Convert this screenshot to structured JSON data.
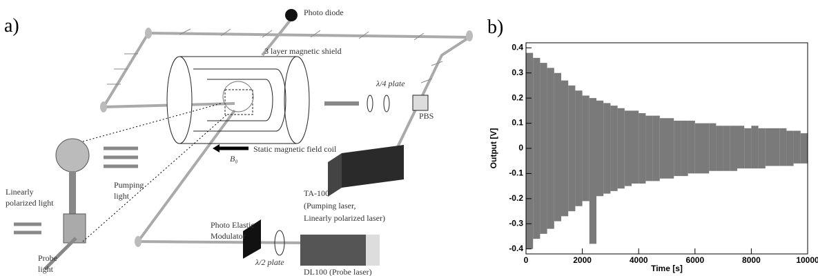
{
  "diagram": {
    "panel_label": "a)",
    "labels": {
      "photo_diode": "Photo diode",
      "shield": "3 layer magnetic shield",
      "quarter_plate": "λ/4  plate",
      "pbs": "PBS",
      "coil": "Static magnetic field coil",
      "b0": "B₀",
      "pumping": [
        "Pumping",
        "light"
      ],
      "linear": [
        "Linearly",
        "polarized light"
      ],
      "probe": [
        "Probe",
        "light"
      ],
      "pem": [
        "Photo Elastic",
        "Modulator"
      ],
      "half_plate": "λ/2 plate",
      "ta": [
        "TA-100",
        "(Pumping laser,",
        "Linearly polarized laser)"
      ],
      "dl": "DL100 (Probe laser)"
    }
  },
  "chart_data": {
    "type": "envelope",
    "panel_label": "b)",
    "x_label": "Time [s]",
    "y_label": "Output [V]",
    "color": "#7a7a7a",
    "x": [
      0,
      250,
      500,
      750,
      1000,
      1250,
      1500,
      1750,
      2000,
      2250,
      2500,
      2750,
      3000,
      3250,
      3500,
      3750,
      4000,
      4250,
      4500,
      4750,
      5000,
      5250,
      5500,
      5750,
      6000,
      6250,
      6500,
      6750,
      7000,
      7250,
      7500,
      7750,
      8000,
      8250,
      8500,
      8750,
      9000,
      9250,
      9500,
      9750
    ],
    "series": [
      {
        "values": [
          0.38,
          0.36,
          0.34,
          0.32,
          0.3,
          0.27,
          0.25,
          0.23,
          0.21,
          0.2,
          0.19,
          0.18,
          0.17,
          0.16,
          0.15,
          0.15,
          0.14,
          0.13,
          0.13,
          0.12,
          0.12,
          0.11,
          0.11,
          0.11,
          0.1,
          0.1,
          0.1,
          0.09,
          0.09,
          0.09,
          0.09,
          0.08,
          0.09,
          0.08,
          0.08,
          0.08,
          0.08,
          0.07,
          0.07,
          0.06
        ]
      },
      {
        "values": [
          -0.4,
          -0.36,
          -0.34,
          -0.32,
          -0.29,
          -0.27,
          -0.25,
          -0.23,
          -0.21,
          -0.38,
          -0.19,
          -0.18,
          -0.17,
          -0.16,
          -0.15,
          -0.14,
          -0.14,
          -0.13,
          -0.13,
          -0.12,
          -0.12,
          -0.11,
          -0.11,
          -0.1,
          -0.1,
          -0.1,
          -0.09,
          -0.09,
          -0.09,
          -0.09,
          -0.08,
          -0.08,
          -0.08,
          -0.08,
          -0.07,
          -0.07,
          -0.07,
          -0.07,
          -0.06,
          -0.06
        ]
      }
    ],
    "xlim": [
      0,
      10000
    ],
    "xticks": [
      0,
      2000,
      4000,
      6000,
      8000,
      10000
    ],
    "ylim": [
      -0.42,
      0.42
    ],
    "yticks": [
      -0.4,
      -0.3,
      -0.2,
      -0.1,
      0,
      0.1,
      0.2,
      0.3,
      0.4
    ]
  }
}
